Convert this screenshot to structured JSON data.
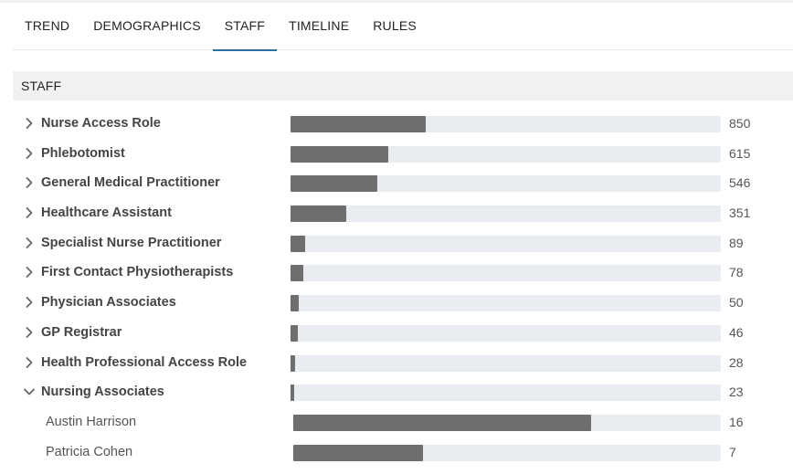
{
  "tabs": [
    {
      "label": "TREND",
      "active": false
    },
    {
      "label": "DEMOGRAPHICS",
      "active": false
    },
    {
      "label": "STAFF",
      "active": true
    },
    {
      "label": "TIMELINE",
      "active": false
    },
    {
      "label": "RULES",
      "active": false
    }
  ],
  "section": {
    "title": "STAFF"
  },
  "colors": {
    "bar_fill": "#6e6e6e",
    "bar_track": "#e9ecf0",
    "tab_underline": "#2c6e9e"
  },
  "rows": [
    {
      "label": "Nurse Access Role",
      "value": 850,
      "expanded": false,
      "level": 0,
      "fraction": 0.315
    },
    {
      "label": "Phlebotomist",
      "value": 615,
      "expanded": false,
      "level": 0,
      "fraction": 0.227
    },
    {
      "label": "General Medical Practitioner",
      "value": 546,
      "expanded": false,
      "level": 0,
      "fraction": 0.202
    },
    {
      "label": "Healthcare Assistant",
      "value": 351,
      "expanded": false,
      "level": 0,
      "fraction": 0.13
    },
    {
      "label": "Specialist Nurse Practitioner",
      "value": 89,
      "expanded": false,
      "level": 0,
      "fraction": 0.033
    },
    {
      "label": "First Contact Physiotherapists",
      "value": 78,
      "expanded": false,
      "level": 0,
      "fraction": 0.029
    },
    {
      "label": "Physician Associates",
      "value": 50,
      "expanded": false,
      "level": 0,
      "fraction": 0.019
    },
    {
      "label": "GP Registrar",
      "value": 46,
      "expanded": false,
      "level": 0,
      "fraction": 0.017
    },
    {
      "label": "Health Professional Access Role",
      "value": 28,
      "expanded": false,
      "level": 0,
      "fraction": 0.011
    },
    {
      "label": "Nursing Associates",
      "value": 23,
      "expanded": true,
      "level": 0,
      "fraction": 0.009
    },
    {
      "label": "Austin Harrison",
      "value": 16,
      "level": 1,
      "fraction": 0.696
    },
    {
      "label": "Patricia Cohen",
      "value": 7,
      "level": 1,
      "fraction": 0.304
    }
  ]
}
